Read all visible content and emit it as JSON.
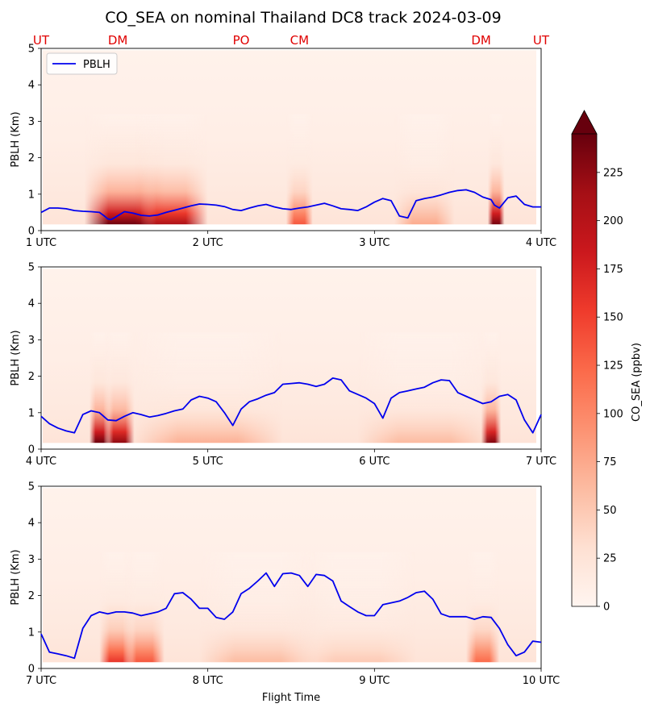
{
  "title": "CO_SEA on nominal Thailand DC8 track 2024-03-09",
  "colors": {
    "pblh_line": "#0000ee",
    "site_label": "#e00000",
    "cmap": [
      "#fff5f0",
      "#fee0d2",
      "#fcbba1",
      "#fc9272",
      "#fb6a4a",
      "#ef3b2c",
      "#cb181d",
      "#a50f15",
      "#67000d"
    ]
  },
  "site_labels": [
    "UT",
    "DM",
    "PO",
    "CM",
    "DM",
    "UT"
  ],
  "site_times_hours": [
    1.0,
    1.46,
    2.2,
    2.55,
    3.64,
    4.0
  ],
  "colorbar": {
    "label": "CO_SEA (ppbv)",
    "ticks": [
      0,
      25,
      50,
      75,
      100,
      125,
      150,
      175,
      200,
      225
    ],
    "range": [
      0,
      245
    ],
    "extend": "max"
  },
  "legend": {
    "label": "PBLH",
    "placement": "upper-left"
  },
  "xlabel": "Flight Time",
  "ylabel": "PBLH (Km)",
  "chart_data": [
    {
      "type": "heatmap",
      "title": "CO_SEA on nominal Thailand DC8 track 2024-03-09",
      "ylabel": "PBLH (Km)",
      "ylim": [
        0,
        5
      ],
      "yticks": [
        "0",
        "1",
        "2",
        "3",
        "4",
        "5"
      ],
      "xlim_hours": [
        1,
        4
      ],
      "xtick_labels": [
        "1 UTC",
        "2 UTC",
        "3 UTC",
        "4 UTC"
      ],
      "series": [
        {
          "name": "PBLH",
          "x_hours": [
            1.0,
            1.05,
            1.1,
            1.15,
            1.2,
            1.25,
            1.3,
            1.35,
            1.38,
            1.4,
            1.42,
            1.45,
            1.5,
            1.55,
            1.6,
            1.65,
            1.7,
            1.75,
            1.8,
            1.85,
            1.9,
            1.95,
            2.0,
            2.05,
            2.1,
            2.15,
            2.2,
            2.25,
            2.3,
            2.35,
            2.4,
            2.45,
            2.5,
            2.55,
            2.6,
            2.65,
            2.7,
            2.75,
            2.8,
            2.85,
            2.9,
            2.95,
            3.0,
            3.05,
            3.1,
            3.15,
            3.2,
            3.25,
            3.3,
            3.35,
            3.4,
            3.45,
            3.5,
            3.55,
            3.6,
            3.65,
            3.7,
            3.72,
            3.75,
            3.8,
            3.85,
            3.9,
            3.95,
            4.0
          ],
          "y_km": [
            0.5,
            0.62,
            0.62,
            0.6,
            0.55,
            0.53,
            0.52,
            0.5,
            0.4,
            0.32,
            0.3,
            0.38,
            0.52,
            0.48,
            0.42,
            0.4,
            0.43,
            0.5,
            0.56,
            0.62,
            0.68,
            0.73,
            0.72,
            0.7,
            0.66,
            0.58,
            0.55,
            0.62,
            0.68,
            0.72,
            0.65,
            0.6,
            0.58,
            0.62,
            0.65,
            0.7,
            0.75,
            0.68,
            0.6,
            0.58,
            0.55,
            0.65,
            0.78,
            0.88,
            0.82,
            0.4,
            0.35,
            0.82,
            0.88,
            0.92,
            0.98,
            1.05,
            1.1,
            1.12,
            1.05,
            0.92,
            0.85,
            0.7,
            0.62,
            0.9,
            0.95,
            0.72,
            0.65,
            0.65
          ]
        }
      ],
      "hotspots": [
        {
          "time_hours": 1.5,
          "width_hours": 0.24,
          "intensity": 0.99
        },
        {
          "time_hours": 1.78,
          "width_hours": 0.22,
          "intensity": 0.85
        },
        {
          "time_hours": 2.55,
          "width_hours": 0.08,
          "intensity": 0.55
        },
        {
          "time_hours": 3.73,
          "width_hours": 0.05,
          "intensity": 0.97
        },
        {
          "time_hours": 3.3,
          "width_hours": 0.18,
          "intensity": 0.3
        }
      ]
    },
    {
      "type": "heatmap",
      "ylabel": "PBLH (Km)",
      "ylim": [
        0,
        5
      ],
      "yticks": [
        "0",
        "1",
        "2",
        "3",
        "4",
        "5"
      ],
      "xlim_hours": [
        4,
        7
      ],
      "xtick_labels": [
        "4 UTC",
        "5 UTC",
        "6 UTC",
        "7 UTC"
      ],
      "series": [
        {
          "name": "PBLH",
          "x_hours": [
            4.0,
            4.05,
            4.1,
            4.15,
            4.2,
            4.25,
            4.3,
            4.35,
            4.4,
            4.45,
            4.5,
            4.55,
            4.6,
            4.65,
            4.7,
            4.75,
            4.8,
            4.85,
            4.9,
            4.95,
            5.0,
            5.05,
            5.1,
            5.15,
            5.2,
            5.25,
            5.3,
            5.35,
            5.4,
            5.45,
            5.5,
            5.55,
            5.6,
            5.65,
            5.7,
            5.75,
            5.8,
            5.85,
            5.9,
            5.95,
            6.0,
            6.05,
            6.1,
            6.15,
            6.2,
            6.25,
            6.3,
            6.35,
            6.4,
            6.45,
            6.5,
            6.55,
            6.6,
            6.65,
            6.7,
            6.75,
            6.8,
            6.85,
            6.9,
            6.95,
            7.0
          ],
          "y_km": [
            0.9,
            0.7,
            0.58,
            0.5,
            0.45,
            0.95,
            1.05,
            1.0,
            0.8,
            0.78,
            0.9,
            1.0,
            0.95,
            0.88,
            0.92,
            0.98,
            1.05,
            1.1,
            1.35,
            1.45,
            1.4,
            1.3,
            1.0,
            0.65,
            1.1,
            1.3,
            1.38,
            1.48,
            1.55,
            1.78,
            1.8,
            1.82,
            1.78,
            1.72,
            1.78,
            1.95,
            1.9,
            1.6,
            1.5,
            1.4,
            1.25,
            0.85,
            1.4,
            1.55,
            1.6,
            1.65,
            1.7,
            1.82,
            1.9,
            1.88,
            1.55,
            1.45,
            1.35,
            1.25,
            1.3,
            1.45,
            1.5,
            1.35,
            0.8,
            0.45,
            0.95
          ]
        }
      ],
      "hotspots": [
        {
          "time_hours": 4.35,
          "width_hours": 0.06,
          "intensity": 0.99
        },
        {
          "time_hours": 4.47,
          "width_hours": 0.09,
          "intensity": 0.92
        },
        {
          "time_hours": 6.7,
          "width_hours": 0.06,
          "intensity": 0.95
        },
        {
          "time_hours": 5.0,
          "width_hours": 0.45,
          "intensity": 0.28
        },
        {
          "time_hours": 6.3,
          "width_hours": 0.4,
          "intensity": 0.25
        }
      ]
    },
    {
      "type": "heatmap",
      "xlabel": "Flight Time",
      "ylabel": "PBLH (Km)",
      "ylim": [
        0,
        5
      ],
      "yticks": [
        "0",
        "1",
        "2",
        "3",
        "4",
        "5"
      ],
      "xlim_hours": [
        7,
        10
      ],
      "xtick_labels": [
        "7 UTC",
        "8 UTC",
        "9 UTC",
        "10 UTC"
      ],
      "series": [
        {
          "name": "PBLH",
          "x_hours": [
            7.0,
            7.05,
            7.1,
            7.15,
            7.2,
            7.25,
            7.3,
            7.35,
            7.4,
            7.45,
            7.5,
            7.55,
            7.6,
            7.65,
            7.7,
            7.75,
            7.8,
            7.85,
            7.9,
            7.95,
            8.0,
            8.05,
            8.1,
            8.15,
            8.2,
            8.25,
            8.3,
            8.35,
            8.4,
            8.45,
            8.5,
            8.55,
            8.6,
            8.65,
            8.7,
            8.75,
            8.8,
            8.85,
            8.9,
            8.95,
            9.0,
            9.05,
            9.1,
            9.15,
            9.2,
            9.25,
            9.3,
            9.35,
            9.4,
            9.45,
            9.5,
            9.55,
            9.6,
            9.65,
            9.7,
            9.75,
            9.8,
            9.85,
            9.9,
            9.95,
            10.0
          ],
          "y_km": [
            0.95,
            0.45,
            0.4,
            0.35,
            0.28,
            1.1,
            1.45,
            1.55,
            1.5,
            1.55,
            1.55,
            1.52,
            1.45,
            1.5,
            1.55,
            1.65,
            2.05,
            2.08,
            1.9,
            1.65,
            1.65,
            1.4,
            1.35,
            1.55,
            2.05,
            2.2,
            2.4,
            2.62,
            2.25,
            2.6,
            2.62,
            2.55,
            2.25,
            2.58,
            2.55,
            2.4,
            1.85,
            1.7,
            1.55,
            1.45,
            1.45,
            1.75,
            1.8,
            1.85,
            1.95,
            2.08,
            2.12,
            1.9,
            1.5,
            1.42,
            1.42,
            1.42,
            1.35,
            1.42,
            1.4,
            1.1,
            0.65,
            0.35,
            0.45,
            0.75,
            0.72
          ]
        }
      ],
      "hotspots": [
        {
          "time_hours": 7.45,
          "width_hours": 0.1,
          "intensity": 0.65
        },
        {
          "time_hours": 7.62,
          "width_hours": 0.12,
          "intensity": 0.55
        },
        {
          "time_hours": 9.65,
          "width_hours": 0.1,
          "intensity": 0.5
        },
        {
          "time_hours": 8.3,
          "width_hours": 0.35,
          "intensity": 0.25
        },
        {
          "time_hours": 8.9,
          "width_hours": 0.35,
          "intensity": 0.2
        }
      ]
    }
  ]
}
